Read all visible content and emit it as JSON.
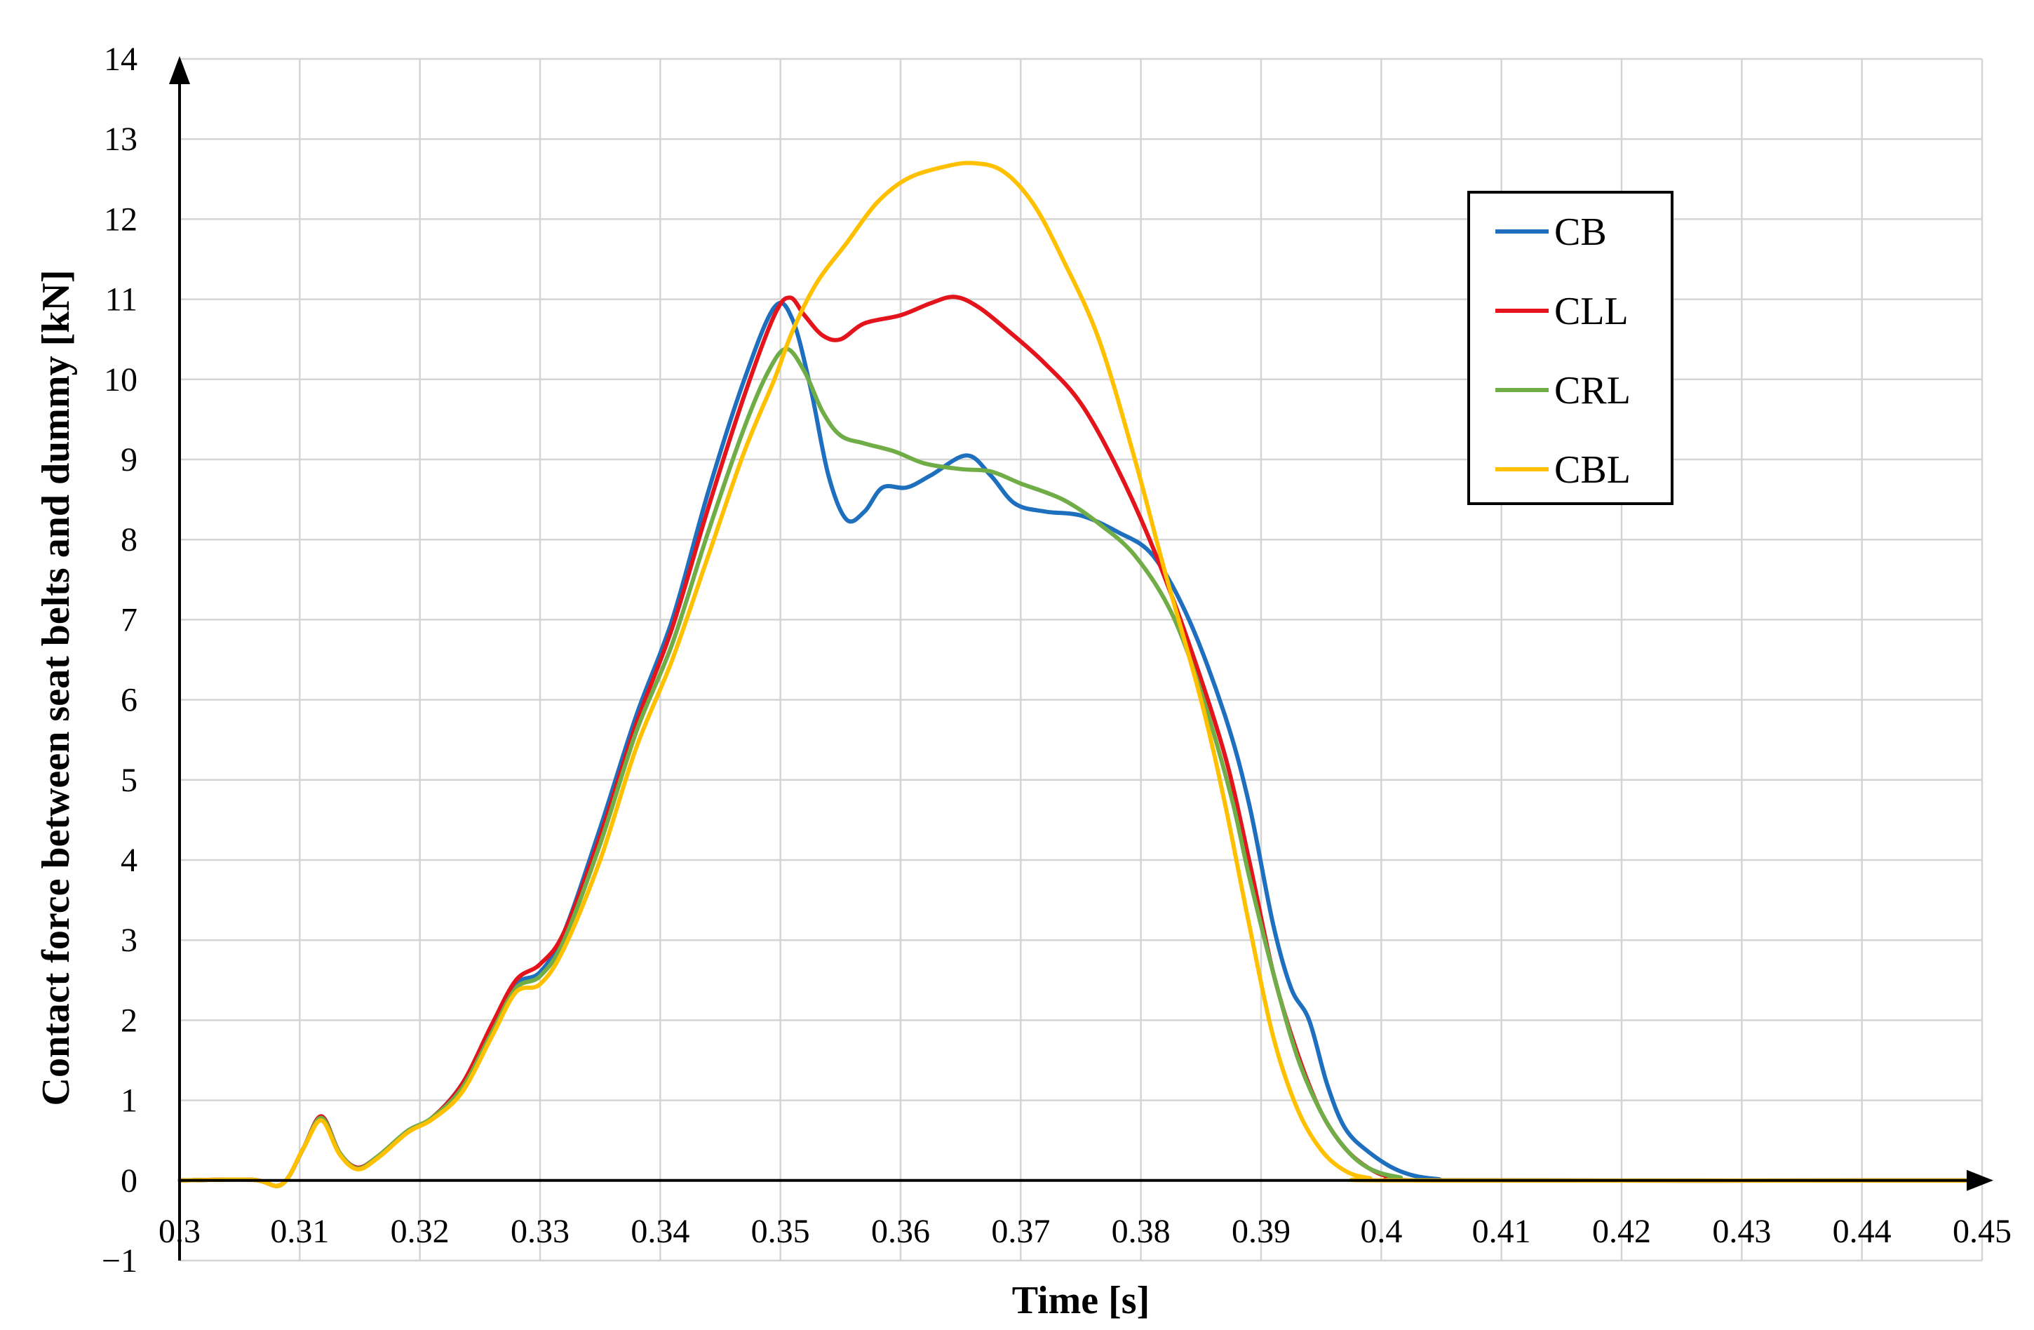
{
  "chart_data": {
    "type": "line",
    "title": "",
    "xlabel": "Time [s]",
    "ylabel": "Contact force between seat belts and dummy [kN]",
    "xlim": [
      0.3,
      0.45
    ],
    "ylim": [
      -1,
      14
    ],
    "grid": true,
    "legend_position": "upper-right",
    "x_ticks": [
      "0.3",
      "0.31",
      "0.32",
      "0.33",
      "0.34",
      "0.35",
      "0.36",
      "0.37",
      "0.38",
      "0.39",
      "0.4",
      "0.41",
      "0.42",
      "0.43",
      "0.44",
      "0.45"
    ],
    "y_ticks": [
      "−1",
      "0",
      "1",
      "2",
      "3",
      "4",
      "5",
      "6",
      "7",
      "8",
      "9",
      "10",
      "11",
      "12",
      "13",
      "14"
    ],
    "series": [
      {
        "name": "CB",
        "color": "#1f6fbf",
        "points": [
          [
            0.3,
            0
          ],
          [
            0.306,
            0.01
          ],
          [
            0.3085,
            -0.05
          ],
          [
            0.3103,
            0.4
          ],
          [
            0.3118,
            0.8
          ],
          [
            0.3133,
            0.35
          ],
          [
            0.3148,
            0.16
          ],
          [
            0.3165,
            0.3
          ],
          [
            0.319,
            0.62
          ],
          [
            0.321,
            0.78
          ],
          [
            0.3235,
            1.2
          ],
          [
            0.326,
            1.9
          ],
          [
            0.328,
            2.45
          ],
          [
            0.33,
            2.6
          ],
          [
            0.332,
            3.1
          ],
          [
            0.335,
            4.4
          ],
          [
            0.338,
            5.8
          ],
          [
            0.341,
            7.0
          ],
          [
            0.344,
            8.6
          ],
          [
            0.347,
            10.0
          ],
          [
            0.3495,
            10.9
          ],
          [
            0.351,
            10.75
          ],
          [
            0.3525,
            9.9
          ],
          [
            0.354,
            8.8
          ],
          [
            0.3555,
            8.25
          ],
          [
            0.357,
            8.35
          ],
          [
            0.3585,
            8.65
          ],
          [
            0.3605,
            8.65
          ],
          [
            0.3625,
            8.8
          ],
          [
            0.3655,
            9.05
          ],
          [
            0.3675,
            8.8
          ],
          [
            0.3695,
            8.45
          ],
          [
            0.372,
            8.35
          ],
          [
            0.375,
            8.3
          ],
          [
            0.378,
            8.1
          ],
          [
            0.381,
            7.8
          ],
          [
            0.384,
            7.0
          ],
          [
            0.387,
            5.8
          ],
          [
            0.389,
            4.7
          ],
          [
            0.391,
            3.2
          ],
          [
            0.3925,
            2.4
          ],
          [
            0.394,
            2.0
          ],
          [
            0.3955,
            1.2
          ],
          [
            0.397,
            0.65
          ],
          [
            0.399,
            0.35
          ],
          [
            0.4015,
            0.12
          ],
          [
            0.4045,
            0.02
          ],
          [
            0.41,
            0
          ],
          [
            0.45,
            0
          ]
        ]
      },
      {
        "name": "CLL",
        "color": "#e3141b",
        "points": [
          [
            0.3,
            0
          ],
          [
            0.306,
            0.01
          ],
          [
            0.3085,
            -0.05
          ],
          [
            0.3103,
            0.4
          ],
          [
            0.3118,
            0.8
          ],
          [
            0.3133,
            0.35
          ],
          [
            0.3148,
            0.16
          ],
          [
            0.3165,
            0.3
          ],
          [
            0.319,
            0.62
          ],
          [
            0.321,
            0.78
          ],
          [
            0.3235,
            1.2
          ],
          [
            0.326,
            1.95
          ],
          [
            0.328,
            2.5
          ],
          [
            0.33,
            2.7
          ],
          [
            0.332,
            3.1
          ],
          [
            0.335,
            4.3
          ],
          [
            0.338,
            5.7
          ],
          [
            0.341,
            6.9
          ],
          [
            0.344,
            8.4
          ],
          [
            0.347,
            9.8
          ],
          [
            0.3495,
            10.8
          ],
          [
            0.3508,
            11.02
          ],
          [
            0.352,
            10.8
          ],
          [
            0.3535,
            10.55
          ],
          [
            0.355,
            10.5
          ],
          [
            0.357,
            10.7
          ],
          [
            0.36,
            10.8
          ],
          [
            0.3625,
            10.95
          ],
          [
            0.3645,
            11.03
          ],
          [
            0.3665,
            10.9
          ],
          [
            0.369,
            10.6
          ],
          [
            0.372,
            10.2
          ],
          [
            0.375,
            9.7
          ],
          [
            0.378,
            8.9
          ],
          [
            0.381,
            7.9
          ],
          [
            0.384,
            6.7
          ],
          [
            0.387,
            5.3
          ],
          [
            0.389,
            4.0
          ],
          [
            0.391,
            2.6
          ],
          [
            0.393,
            1.6
          ],
          [
            0.395,
            0.85
          ],
          [
            0.397,
            0.4
          ],
          [
            0.399,
            0.15
          ],
          [
            0.401,
            0.04
          ],
          [
            0.405,
            0
          ],
          [
            0.45,
            0
          ]
        ]
      },
      {
        "name": "CRL",
        "color": "#70ad47",
        "points": [
          [
            0.3,
            0
          ],
          [
            0.306,
            0.01
          ],
          [
            0.3085,
            -0.05
          ],
          [
            0.3103,
            0.4
          ],
          [
            0.3118,
            0.78
          ],
          [
            0.3133,
            0.35
          ],
          [
            0.3148,
            0.15
          ],
          [
            0.3165,
            0.3
          ],
          [
            0.319,
            0.62
          ],
          [
            0.321,
            0.78
          ],
          [
            0.3235,
            1.15
          ],
          [
            0.326,
            1.85
          ],
          [
            0.328,
            2.4
          ],
          [
            0.33,
            2.55
          ],
          [
            0.332,
            3.0
          ],
          [
            0.335,
            4.2
          ],
          [
            0.338,
            5.6
          ],
          [
            0.341,
            6.7
          ],
          [
            0.344,
            8.1
          ],
          [
            0.347,
            9.4
          ],
          [
            0.349,
            10.1
          ],
          [
            0.3505,
            10.38
          ],
          [
            0.352,
            10.1
          ],
          [
            0.3535,
            9.6
          ],
          [
            0.355,
            9.3
          ],
          [
            0.357,
            9.2
          ],
          [
            0.3595,
            9.1
          ],
          [
            0.362,
            8.95
          ],
          [
            0.365,
            8.88
          ],
          [
            0.3675,
            8.85
          ],
          [
            0.37,
            8.7
          ],
          [
            0.3735,
            8.5
          ],
          [
            0.3765,
            8.2
          ],
          [
            0.3795,
            7.8
          ],
          [
            0.3825,
            7.1
          ],
          [
            0.385,
            6.1
          ],
          [
            0.3875,
            4.8
          ],
          [
            0.389,
            3.8
          ],
          [
            0.391,
            2.6
          ],
          [
            0.393,
            1.55
          ],
          [
            0.395,
            0.85
          ],
          [
            0.397,
            0.4
          ],
          [
            0.399,
            0.15
          ],
          [
            0.4015,
            0.04
          ],
          [
            0.405,
            0
          ],
          [
            0.45,
            0
          ]
        ]
      },
      {
        "name": "CBL",
        "color": "#ffc000",
        "points": [
          [
            0.3,
            0
          ],
          [
            0.306,
            0.01
          ],
          [
            0.3085,
            -0.05
          ],
          [
            0.3103,
            0.4
          ],
          [
            0.3118,
            0.75
          ],
          [
            0.3133,
            0.33
          ],
          [
            0.3148,
            0.14
          ],
          [
            0.3165,
            0.28
          ],
          [
            0.319,
            0.6
          ],
          [
            0.321,
            0.76
          ],
          [
            0.3235,
            1.1
          ],
          [
            0.326,
            1.8
          ],
          [
            0.328,
            2.35
          ],
          [
            0.33,
            2.45
          ],
          [
            0.332,
            2.9
          ],
          [
            0.335,
            4.0
          ],
          [
            0.338,
            5.4
          ],
          [
            0.341,
            6.5
          ],
          [
            0.344,
            7.8
          ],
          [
            0.347,
            9.1
          ],
          [
            0.3495,
            10.0
          ],
          [
            0.351,
            10.6
          ],
          [
            0.353,
            11.2
          ],
          [
            0.3555,
            11.7
          ],
          [
            0.358,
            12.2
          ],
          [
            0.3605,
            12.5
          ],
          [
            0.3635,
            12.65
          ],
          [
            0.366,
            12.7
          ],
          [
            0.3685,
            12.6
          ],
          [
            0.371,
            12.2
          ],
          [
            0.3735,
            11.5
          ],
          [
            0.3765,
            10.5
          ],
          [
            0.3795,
            9.0
          ],
          [
            0.382,
            7.6
          ],
          [
            0.385,
            6.0
          ],
          [
            0.387,
            4.7
          ],
          [
            0.389,
            3.2
          ],
          [
            0.391,
            1.8
          ],
          [
            0.393,
            0.9
          ],
          [
            0.395,
            0.38
          ],
          [
            0.397,
            0.12
          ],
          [
            0.399,
            0.03
          ],
          [
            0.402,
            0
          ],
          [
            0.45,
            0
          ]
        ]
      }
    ]
  }
}
